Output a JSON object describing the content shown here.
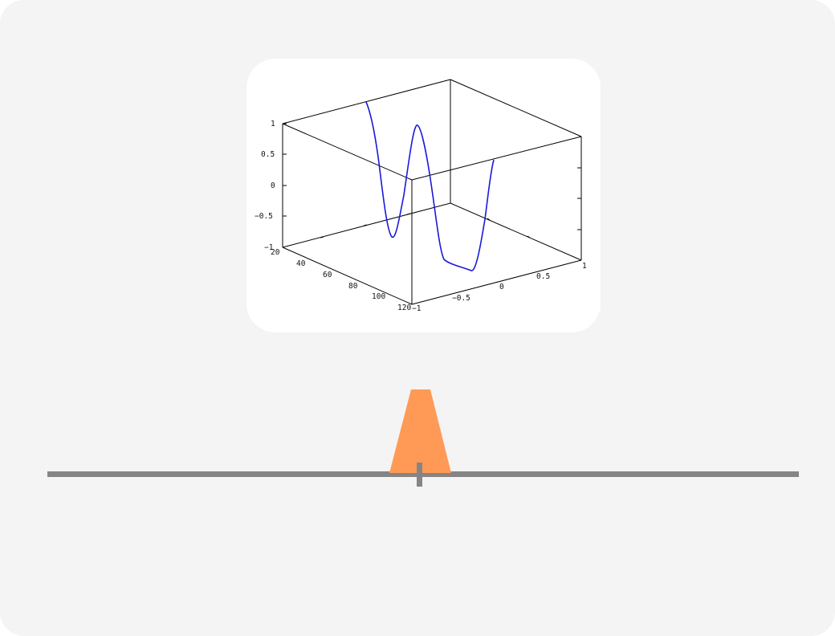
{
  "plot": {
    "z_ticks": [
      "1",
      "0.5",
      "0",
      "−0.5",
      "−1"
    ],
    "x_ticks": [
      "20",
      "40",
      "60",
      "80",
      "100",
      "120"
    ],
    "y_ticks": [
      "−1",
      "−0.5",
      "0",
      "0.5",
      "1"
    ],
    "curve_color": "#1a1adb"
  },
  "slider": {
    "thumb_color": "#ff9a56",
    "track_color": "#858585",
    "value_fraction": 0.5
  }
}
